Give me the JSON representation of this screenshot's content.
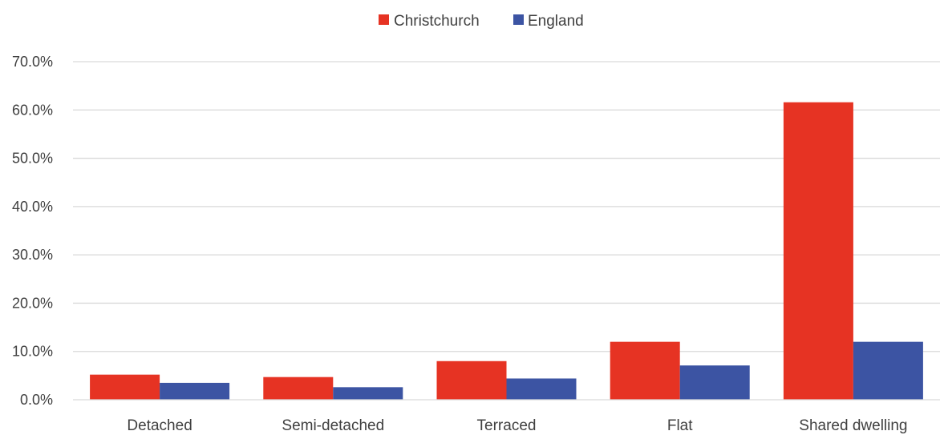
{
  "chart_data": {
    "type": "bar",
    "categories": [
      "Detached",
      "Semi-detached",
      "Terraced",
      "Flat",
      "Shared dwelling"
    ],
    "series": [
      {
        "name": "Christchurch",
        "color": "#e63323",
        "values": [
          5.2,
          4.7,
          8.0,
          12.0,
          61.6
        ]
      },
      {
        "name": "England",
        "color": "#3c54a3",
        "values": [
          3.5,
          2.6,
          4.4,
          7.1,
          12.0
        ]
      }
    ],
    "y_ticks": [
      "0.0%",
      "10.0%",
      "20.0%",
      "30.0%",
      "40.0%",
      "50.0%",
      "60.0%",
      "70.0%"
    ],
    "ylim": [
      0,
      70
    ],
    "grid": true,
    "legend_position": "top-center",
    "title": "",
    "xlabel": "",
    "ylabel": ""
  }
}
